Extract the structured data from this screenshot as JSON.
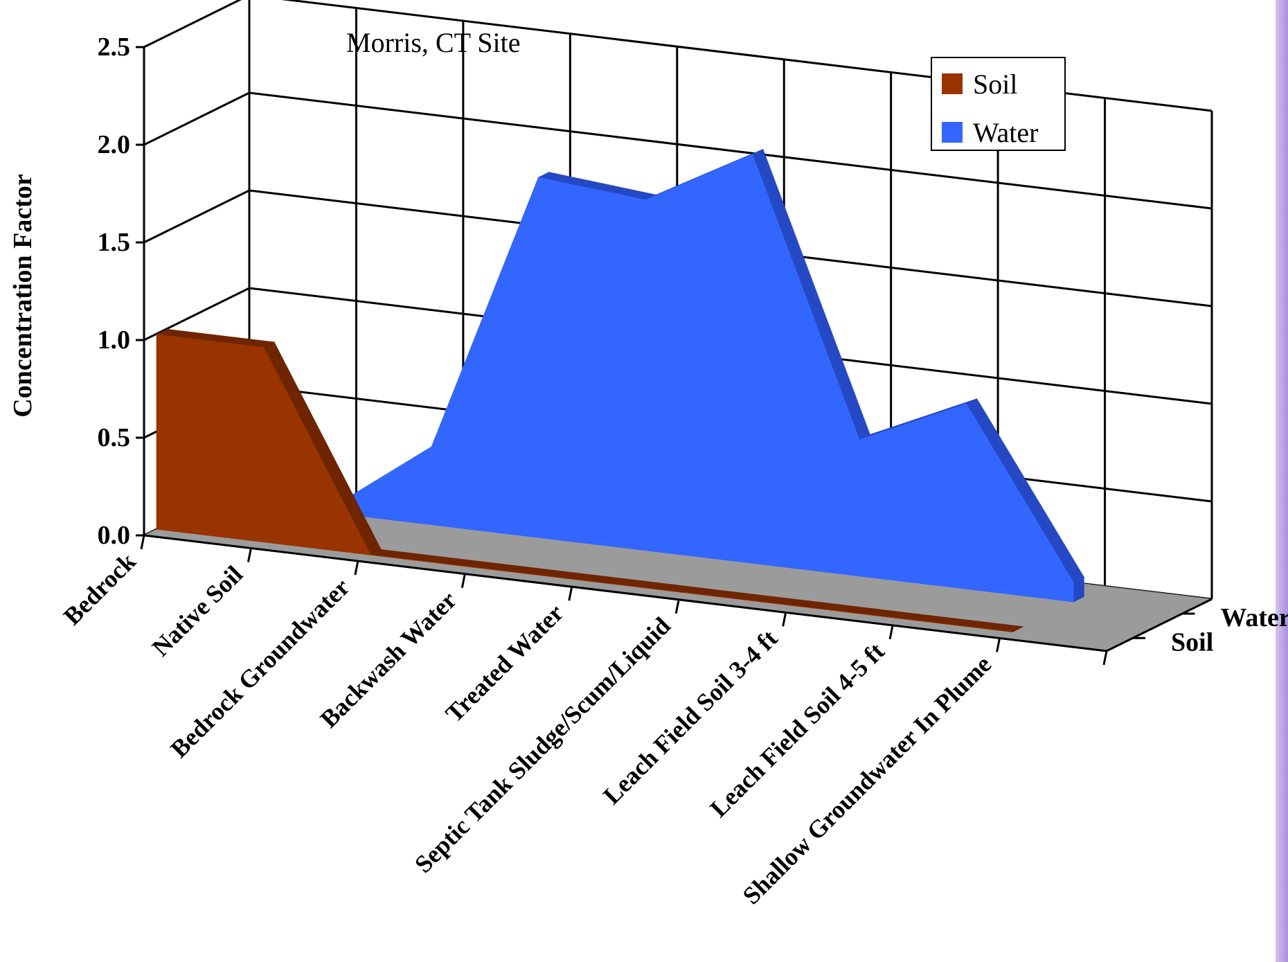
{
  "chart_data": {
    "type": "area",
    "title": "Morris, CT Site",
    "xlabel": "",
    "ylabel": "Concentration Factor",
    "ylim": [
      0,
      2.5
    ],
    "yticks": [
      "0.0",
      "0.5",
      "1.0",
      "1.5",
      "2.0",
      "2.5"
    ],
    "grid": true,
    "legend": "top-right",
    "categories": [
      "Bedrock",
      "Native Soil",
      "Bedrock Groundwater",
      "Backwash Water",
      "Treated Water",
      "Septic Tank Sludge/Scum/Liquid",
      "Leach Field Soil 3-4 ft",
      "Leach Field Soil 4-5 ft",
      "Shallow Groundwater In Plume"
    ],
    "depth_labels": [
      "Water",
      "Soil"
    ],
    "series": [
      {
        "name": "Soil",
        "values": [
          1.0,
          1.0,
          0,
          0,
          0,
          0,
          0,
          0,
          0
        ],
        "color": "#993300"
      },
      {
        "name": "Water",
        "values": [
          0,
          0,
          0.4,
          1.85,
          1.8,
          2.1,
          0.7,
          0.95,
          0.1
        ],
        "color": "#3366ff"
      }
    ]
  }
}
